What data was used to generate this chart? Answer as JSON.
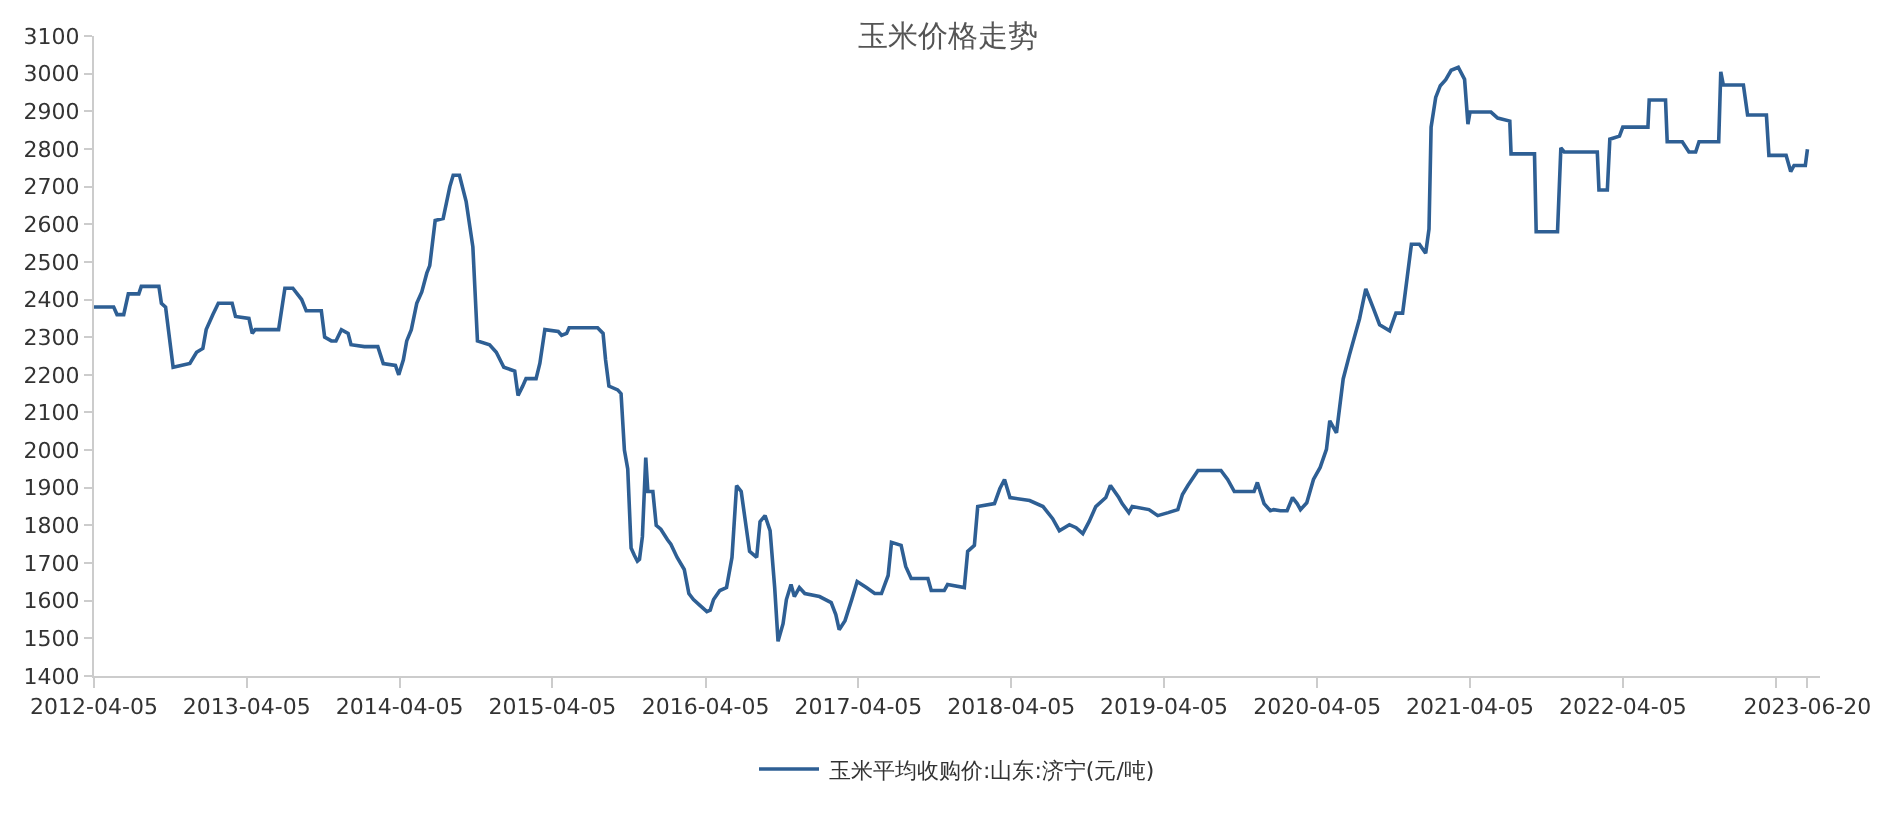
{
  "chart_data": {
    "type": "line",
    "title": "玉米价格走势",
    "legend": "bottom",
    "marker": "none",
    "line_style": "solid",
    "xlim": [
      "2012-04-05",
      "2023-07-20"
    ],
    "xticks": [
      {
        "value": "2012-04-05",
        "label": "2012-04-05"
      },
      {
        "value": "2013-04-05",
        "label": "2013-04-05"
      },
      {
        "value": "2014-04-05",
        "label": "2014-04-05"
      },
      {
        "value": "2015-04-05",
        "label": "2015-04-05"
      },
      {
        "value": "2016-04-05",
        "label": "2016-04-05"
      },
      {
        "value": "2017-04-05",
        "label": "2017-04-05"
      },
      {
        "value": "2018-04-05",
        "label": "2018-04-05"
      },
      {
        "value": "2019-04-05",
        "label": "2019-04-05"
      },
      {
        "value": "2020-04-05",
        "label": "2020-04-05"
      },
      {
        "value": "2021-04-05",
        "label": "2021-04-05"
      },
      {
        "value": "2022-04-05",
        "label": "2022-04-05"
      },
      {
        "value": "2023-04-05",
        "label": null
      },
      {
        "value": "2023-06-20",
        "label": "2023-06-20"
      }
    ],
    "ylim": [
      1400,
      3100
    ],
    "yticks": [
      1400,
      1500,
      1600,
      1700,
      1800,
      1900,
      2000,
      2100,
      2200,
      2300,
      2400,
      2500,
      2600,
      2700,
      2800,
      2900,
      3000,
      3100
    ],
    "series": [
      {
        "name": "玉米平均收购价:山东:济宁(元/吨)",
        "color": "#2e5f94",
        "x": [
          "2012-04-05",
          "2012-05-22",
          "2012-05-30",
          "2012-06-15",
          "2012-06-26",
          "2012-07-21",
          "2012-07-27",
          "2012-09-07",
          "2012-09-13",
          "2012-09-23",
          "2012-10-11",
          "2012-11-20",
          "2012-12-06",
          "2012-12-21",
          "2012-12-29",
          "2013-01-14",
          "2013-01-27",
          "2013-03-01",
          "2013-03-09",
          "2013-04-10",
          "2013-04-18",
          "2013-04-25",
          "2013-06-20",
          "2013-07-05",
          "2013-07-24",
          "2013-08-14",
          "2013-08-25",
          "2013-09-30",
          "2013-10-08",
          "2013-10-24",
          "2013-11-04",
          "2013-11-17",
          "2013-12-03",
          "2013-12-10",
          "2014-01-11",
          "2014-02-12",
          "2014-02-25",
          "2014-03-26",
          "2014-04-03",
          "2014-04-14",
          "2014-04-22",
          "2014-05-03",
          "2014-05-16",
          "2014-05-28",
          "2014-06-09",
          "2014-06-16",
          "2014-06-29",
          "2014-07-18",
          "2014-08-03",
          "2014-08-11",
          "2014-08-26",
          "2014-09-11",
          "2014-09-27",
          "2014-10-08",
          "2014-11-06",
          "2014-11-22",
          "2014-12-10",
          "2015-01-05",
          "2015-01-13",
          "2015-01-24",
          "2015-02-01",
          "2015-02-25",
          "2015-03-06",
          "2015-03-18",
          "2015-04-19",
          "2015-04-27",
          "2015-05-09",
          "2015-05-15",
          "2015-07-22",
          "2015-08-04",
          "2015-08-10",
          "2015-08-18",
          "2015-09-08",
          "2015-09-16",
          "2015-09-24",
          "2015-10-02",
          "2015-10-10",
          "2015-10-18",
          "2015-10-25",
          "2015-10-30",
          "2015-11-06",
          "2015-11-14",
          "2015-11-19",
          "2015-12-01",
          "2015-12-09",
          "2015-12-20",
          "2016-01-05",
          "2016-01-13",
          "2016-01-28",
          "2016-02-14",
          "2016-02-25",
          "2016-03-07",
          "2016-03-23",
          "2016-04-08",
          "2016-04-16",
          "2016-04-24",
          "2016-05-09",
          "2016-05-25",
          "2016-06-07",
          "2016-06-18",
          "2016-06-29",
          "2016-07-19",
          "2016-08-05",
          "2016-08-13",
          "2016-08-25",
          "2016-09-06",
          "2016-09-17",
          "2016-09-25",
          "2016-10-07",
          "2016-10-15",
          "2016-10-26",
          "2016-11-03",
          "2016-11-15",
          "2016-11-28",
          "2017-01-02",
          "2017-01-30",
          "2017-02-10",
          "2017-02-18",
          "2017-03-04",
          "2017-03-20",
          "2017-04-02",
          "2017-04-24",
          "2017-05-14",
          "2017-05-30",
          "2017-06-15",
          "2017-06-23",
          "2017-07-16",
          "2017-07-27",
          "2017-08-09",
          "2017-09-18",
          "2017-09-26",
          "2017-10-27",
          "2017-11-04",
          "2017-12-14",
          "2017-12-22",
          "2018-01-07",
          "2018-01-15",
          "2018-02-24",
          "2018-03-09",
          "2018-03-20",
          "2018-04-02",
          "2018-05-19",
          "2018-06-20",
          "2018-07-13",
          "2018-07-29",
          "2018-08-22",
          "2018-09-07",
          "2018-09-23",
          "2018-10-08",
          "2018-10-24",
          "2018-11-17",
          "2018-11-28",
          "2018-12-18",
          "2018-12-26",
          "2019-01-11",
          "2019-01-19",
          "2019-02-28",
          "2019-03-21",
          "2019-04-15",
          "2019-05-08",
          "2019-05-19",
          "2019-06-01",
          "2019-06-25",
          "2019-08-19",
          "2019-09-04",
          "2019-09-20",
          "2019-11-06",
          "2019-11-14",
          "2019-11-30",
          "2019-12-15",
          "2019-12-23",
          "2020-01-08",
          "2020-01-24",
          "2020-02-06",
          "2020-02-17",
          "2020-02-25",
          "2020-03-11",
          "2020-03-27",
          "2020-04-12",
          "2020-04-27",
          "2020-05-05",
          "2020-05-21",
          "2020-06-06",
          "2020-06-21",
          "2020-07-15",
          "2020-07-30",
          "2020-08-16",
          "2020-09-01",
          "2020-09-25",
          "2020-10-10",
          "2020-10-26",
          "2020-11-06",
          "2020-11-16",
          "2020-12-05",
          "2020-12-20",
          "2020-12-28",
          "2021-01-02",
          "2021-01-13",
          "2021-01-24",
          "2021-02-06",
          "2021-02-19",
          "2021-03-08",
          "2021-03-23",
          "2021-03-31",
          "2021-04-05",
          "2021-05-25",
          "2021-06-10",
          "2021-07-09",
          "2021-07-12",
          "2021-09-06",
          "2021-09-10",
          "2021-10-31",
          "2021-11-08",
          "2021-11-16",
          "2022-02-03",
          "2022-02-07",
          "2022-02-27",
          "2022-03-05",
          "2022-03-28",
          "2022-04-05",
          "2022-06-04",
          "2022-06-07",
          "2022-07-16",
          "2022-07-20",
          "2022-08-25",
          "2022-09-10",
          "2022-09-26",
          "2022-10-04",
          "2022-11-20",
          "2022-11-25",
          "2022-12-01",
          "2023-01-18",
          "2023-01-28",
          "2023-03-14",
          "2023-03-20",
          "2023-04-30",
          "2023-05-11",
          "2023-05-19",
          "2023-06-15",
          "2023-06-20"
        ],
        "values": [
          2380,
          2380,
          2360,
          2360,
          2415,
          2415,
          2435,
          2435,
          2390,
          2380,
          2220,
          2230,
          2260,
          2270,
          2320,
          2360,
          2390,
          2390,
          2355,
          2350,
          2310,
          2320,
          2320,
          2430,
          2430,
          2400,
          2370,
          2370,
          2300,
          2290,
          2290,
          2320,
          2310,
          2280,
          2275,
          2275,
          2230,
          2225,
          2200,
          2240,
          2290,
          2320,
          2390,
          2420,
          2470,
          2490,
          2610,
          2615,
          2700,
          2730,
          2730,
          2660,
          2540,
          2290,
          2280,
          2260,
          2220,
          2210,
          2145,
          2170,
          2190,
          2190,
          2230,
          2320,
          2315,
          2305,
          2310,
          2325,
          2325,
          2310,
          2240,
          2170,
          2160,
          2150,
          2000,
          1950,
          1740,
          1720,
          1705,
          1710,
          1770,
          1980,
          1890,
          1890,
          1800,
          1790,
          1762,
          1750,
          1715,
          1683,
          1619,
          1603,
          1587,
          1571,
          1575,
          1603,
          1627,
          1635,
          1715,
          1906,
          1890,
          1731,
          1715,
          1810,
          1826,
          1786,
          1635,
          1492,
          1539,
          1603,
          1643,
          1611,
          1635,
          1619,
          1611,
          1595,
          1563,
          1523,
          1547,
          1603,
          1651,
          1635,
          1619,
          1619,
          1667,
          1755,
          1747,
          1691,
          1659,
          1659,
          1627,
          1627,
          1643,
          1635,
          1731,
          1747,
          1850,
          1858,
          1898,
          1922,
          1874,
          1866,
          1850,
          1818,
          1786,
          1802,
          1794,
          1778,
          1810,
          1850,
          1874,
          1906,
          1874,
          1858,
          1834,
          1850,
          1842,
          1826,
          1834,
          1842,
          1882,
          1906,
          1946,
          1946,
          1922,
          1890,
          1890,
          1914,
          1858,
          1839,
          1842,
          1839,
          1839,
          1874,
          1858,
          1842,
          1860,
          1922,
          1954,
          2002,
          2078,
          2046,
          2189,
          2253,
          2349,
          2428,
          2380,
          2333,
          2317,
          2364,
          2364,
          2460,
          2547,
          2547,
          2523,
          2587,
          2858,
          2937,
          2968,
          2984,
          3009,
          3017,
          2985,
          2866,
          2898,
          2898,
          2882,
          2874,
          2787,
          2787,
          2580,
          2580,
          2803,
          2792,
          2792,
          2691,
          2691,
          2826,
          2834,
          2858,
          2858,
          2930,
          2930,
          2819,
          2819,
          2792,
          2792,
          2819,
          2819,
          3005,
          2970,
          2970,
          2890,
          2890,
          2783,
          2783,
          2740,
          2756,
          2756,
          2799
        ]
      }
    ]
  }
}
